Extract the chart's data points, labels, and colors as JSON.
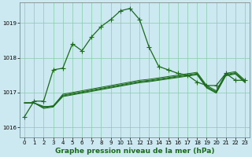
{
  "title": "Graphe pression niveau de la mer (hPa)",
  "bg_color": "#cce8f0",
  "grid_color": "#88ccaa",
  "line_color": "#1a6b1a",
  "xlim": [
    -0.5,
    23.5
  ],
  "ylim": [
    1015.7,
    1019.6
  ],
  "yticks": [
    1016,
    1017,
    1018,
    1019
  ],
  "xticks": [
    0,
    1,
    2,
    3,
    4,
    5,
    6,
    7,
    8,
    9,
    10,
    11,
    12,
    13,
    14,
    15,
    16,
    17,
    18,
    19,
    20,
    21,
    22,
    23
  ],
  "series_main": [
    1016.3,
    1016.75,
    null,
    1017.65,
    null,
    1018.4,
    null,
    null,
    1018.9,
    1019.1,
    1019.35,
    1019.42,
    1019.1,
    1018.3,
    null,
    1017.65,
    null,
    null,
    null,
    null,
    null,
    1017.55,
    null,
    null
  ],
  "series_main_full": [
    1016.3,
    1016.75,
    1016.75,
    1017.65,
    1017.7,
    1018.4,
    1018.2,
    1018.6,
    1018.9,
    1019.1,
    1019.35,
    1019.42,
    1019.1,
    1018.3,
    1017.75,
    1017.65,
    1017.55,
    1017.5,
    1017.3,
    1017.2,
    1017.2,
    1017.55,
    1017.35,
    1017.35
  ],
  "series_flat": [
    [
      1016.7,
      1016.7,
      1016.6,
      1016.6,
      1016.95,
      1017.0,
      1017.05,
      1017.1,
      1017.15,
      1017.2,
      1017.25,
      1017.3,
      1017.35,
      1017.38,
      1017.42,
      1017.46,
      1017.5,
      1017.54,
      1017.58,
      1017.2,
      1017.05,
      1017.55,
      1017.6,
      1017.35
    ],
    [
      1016.7,
      1016.7,
      1016.58,
      1016.62,
      1016.92,
      1016.97,
      1017.02,
      1017.07,
      1017.12,
      1017.17,
      1017.22,
      1017.27,
      1017.32,
      1017.35,
      1017.39,
      1017.43,
      1017.47,
      1017.51,
      1017.55,
      1017.17,
      1017.02,
      1017.52,
      1017.57,
      1017.32
    ],
    [
      1016.7,
      1016.7,
      1016.56,
      1016.6,
      1016.9,
      1016.95,
      1017.0,
      1017.05,
      1017.1,
      1017.15,
      1017.2,
      1017.25,
      1017.3,
      1017.33,
      1017.37,
      1017.41,
      1017.45,
      1017.49,
      1017.53,
      1017.15,
      1017.0,
      1017.5,
      1017.55,
      1017.3
    ],
    [
      1016.7,
      1016.7,
      1016.54,
      1016.58,
      1016.88,
      1016.93,
      1016.98,
      1017.03,
      1017.08,
      1017.13,
      1017.18,
      1017.23,
      1017.28,
      1017.31,
      1017.35,
      1017.39,
      1017.43,
      1017.47,
      1017.51,
      1017.13,
      1016.98,
      1017.48,
      1017.53,
      1017.28
    ]
  ],
  "marker": "+",
  "markersize": 4,
  "linewidth": 0.9,
  "flat_linewidth": 0.7,
  "title_fontsize": 6.5,
  "tick_fontsize": 5
}
